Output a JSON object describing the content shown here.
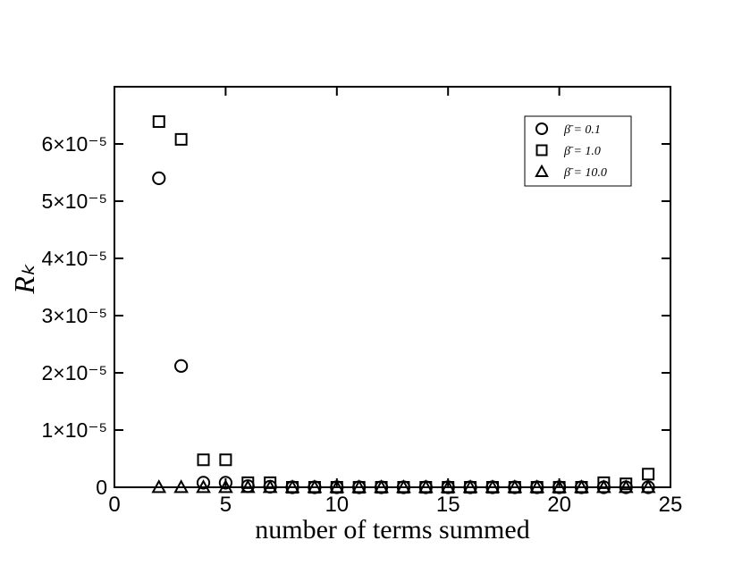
{
  "chart_data": {
    "type": "scatter",
    "x_label": "number of terms summed",
    "y_label": "Rₖ",
    "xlim": [
      0,
      25
    ],
    "ylim": [
      0,
      7e-05
    ],
    "xticks": [
      0,
      5,
      10,
      15,
      20,
      25
    ],
    "yticks": [
      0,
      {
        "value": 1e-05,
        "label": "1×10⁻⁵"
      },
      {
        "value": 2e-05,
        "label": "2×10⁻⁵"
      },
      {
        "value": 3e-05,
        "label": "3×10⁻⁵"
      },
      {
        "value": 4e-05,
        "label": "4×10⁻⁵"
      },
      {
        "value": 5e-05,
        "label": "5×10⁻⁵"
      },
      {
        "value": 6e-05,
        "label": "6×10⁻⁵"
      }
    ],
    "legend_position": "upper right",
    "x": [
      2,
      3,
      4,
      5,
      6,
      7,
      8,
      9,
      10,
      11,
      12,
      13,
      14,
      15,
      16,
      17,
      18,
      19,
      20,
      21,
      22,
      23,
      24
    ],
    "series": [
      {
        "name": "β̄ = 0.1",
        "marker": "circle",
        "color": "#000000",
        "values": [
          5.4e-05,
          2.12e-05,
          8e-07,
          8e-07,
          2e-07,
          1e-07,
          0,
          0,
          0,
          0,
          0,
          0,
          0,
          0,
          0,
          0,
          0,
          0,
          0,
          0,
          0,
          0,
          0
        ]
      },
      {
        "name": "β̄ = 1.0",
        "marker": "square",
        "color": "#000000",
        "values": [
          6.39e-05,
          6.08e-05,
          4.8e-06,
          4.8e-06,
          8e-07,
          8e-07,
          0,
          0,
          0,
          0,
          0,
          0,
          0,
          0,
          0,
          0,
          0,
          0,
          0,
          0,
          8e-07,
          6e-07,
          2.3e-06
        ]
      },
      {
        "name": "β̄ = 10.0",
        "marker": "triangle",
        "color": "#000000",
        "values": [
          0,
          0,
          0,
          0,
          0,
          0,
          0,
          0,
          0,
          0,
          0,
          0,
          0,
          0,
          0,
          0,
          0,
          0,
          0,
          0,
          0,
          0,
          0
        ]
      }
    ]
  }
}
